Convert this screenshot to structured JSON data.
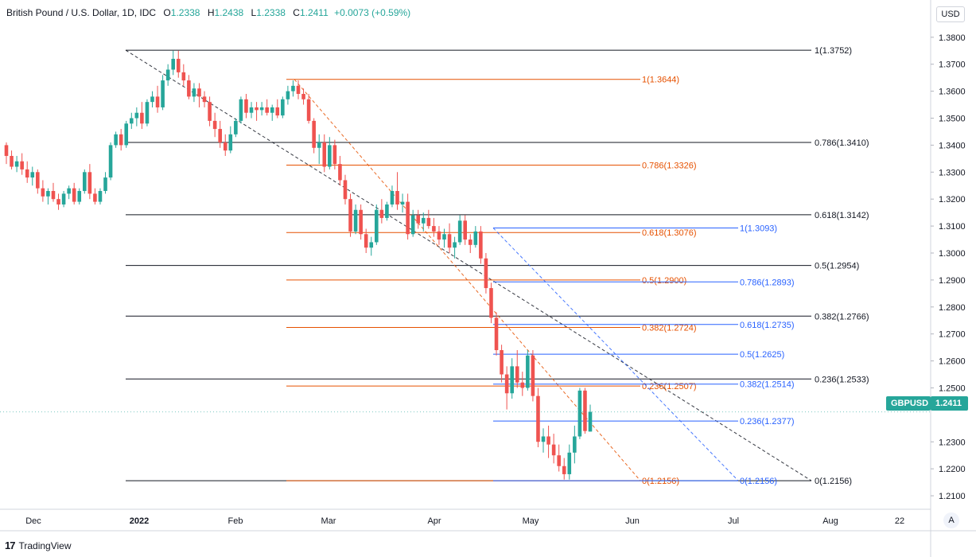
{
  "header": {
    "symbol": "British Pound / U.S. Dollar, 1D, IDC",
    "open_label": "O",
    "open": "1.2338",
    "high_label": "H",
    "high": "1.2438",
    "low_label": "L",
    "low": "1.2338",
    "close_label": "C",
    "close": "1.2411",
    "change": "+0.0073 (+0.59%)"
  },
  "currency_button": "USD",
  "auto_button": "A",
  "last_price": {
    "ticker": "GBPUSD",
    "value": "1.2411"
  },
  "brand": {
    "logo": "17",
    "name": "TradingView"
  },
  "colors": {
    "up": "#26a69a",
    "down": "#ef5350",
    "fib_black": "#131722",
    "fib_orange": "#e65100",
    "fib_blue": "#2962ff",
    "tag_bg": "#26a69a"
  },
  "chart_data": {
    "type": "candlestick",
    "title": "British Pound / U.S. Dollar, 1D, IDC",
    "ylim": [
      1.205,
      1.3885
    ],
    "y_ticks": [
      "1.3800",
      "1.3700",
      "1.3600",
      "1.3500",
      "1.3400",
      "1.3300",
      "1.3200",
      "1.3100",
      "1.3000",
      "1.2900",
      "1.2800",
      "1.2700",
      "1.2600",
      "1.2500",
      "1.2300",
      "1.2200",
      "1.2100"
    ],
    "x_ticks": [
      "Dec",
      "2022",
      "Feb",
      "Mar",
      "Apr",
      "May",
      "Jun",
      "Jul",
      "Aug",
      "22"
    ],
    "grid": false,
    "fib_sets": [
      {
        "name": "black",
        "high": 1.3752,
        "low": 1.2156,
        "levels": [
          {
            "ratio": "1",
            "price": 1.3752,
            "label": "1(1.3752)"
          },
          {
            "ratio": "0.786",
            "price": 1.341,
            "label": "0.786(1.3410)"
          },
          {
            "ratio": "0.618",
            "price": 1.3142,
            "label": "0.618(1.3142)"
          },
          {
            "ratio": "0.5",
            "price": 1.2954,
            "label": "0.5(1.2954)"
          },
          {
            "ratio": "0.382",
            "price": 1.2766,
            "label": "0.382(1.2766)"
          },
          {
            "ratio": "0.236",
            "price": 1.2533,
            "label": "0.236(1.2533)"
          },
          {
            "ratio": "0",
            "price": 1.2156,
            "label": "0(1.2156)"
          }
        ]
      },
      {
        "name": "orange",
        "high": 1.3644,
        "low": 1.2156,
        "levels": [
          {
            "ratio": "1",
            "price": 1.3644,
            "label": "1(1.3644)"
          },
          {
            "ratio": "0.786",
            "price": 1.3326,
            "label": "0.786(1.3326)"
          },
          {
            "ratio": "0.618",
            "price": 1.3076,
            "label": "0.618(1.3076)"
          },
          {
            "ratio": "0.5",
            "price": 1.29,
            "label": "0.5(1.2900)"
          },
          {
            "ratio": "0.382",
            "price": 1.2724,
            "label": "0.382(1.2724)"
          },
          {
            "ratio": "0.236",
            "price": 1.2507,
            "label": "0.236(1.2507)"
          },
          {
            "ratio": "0",
            "price": 1.2156,
            "label": "0(1.2156)"
          }
        ]
      },
      {
        "name": "blue",
        "high": 1.3093,
        "low": 1.2156,
        "levels": [
          {
            "ratio": "1",
            "price": 1.3093,
            "label": "1(1.3093)"
          },
          {
            "ratio": "0.786",
            "price": 1.2893,
            "label": "0.786(1.2893)"
          },
          {
            "ratio": "0.618",
            "price": 1.2735,
            "label": "0.618(1.2735)"
          },
          {
            "ratio": "0.5",
            "price": 1.2625,
            "label": "0.5(1.2625)"
          },
          {
            "ratio": "0.382",
            "price": 1.2514,
            "label": "0.382(1.2514)"
          },
          {
            "ratio": "0.236",
            "price": 1.2377,
            "label": "0.236(1.2377)"
          },
          {
            "ratio": "0",
            "price": 1.2156,
            "label": "0(1.2156)"
          }
        ]
      }
    ],
    "candles": [
      [
        1.34,
        1.341,
        1.333,
        1.336
      ],
      [
        1.336,
        1.338,
        1.331,
        1.332
      ],
      [
        1.332,
        1.336,
        1.33,
        1.334
      ],
      [
        1.334,
        1.337,
        1.329,
        1.331
      ],
      [
        1.331,
        1.334,
        1.326,
        1.328
      ],
      [
        1.328,
        1.332,
        1.325,
        1.33
      ],
      [
        1.33,
        1.331,
        1.322,
        1.324
      ],
      [
        1.324,
        1.327,
        1.319,
        1.321
      ],
      [
        1.321,
        1.324,
        1.318,
        1.323
      ],
      [
        1.323,
        1.326,
        1.319,
        1.32
      ],
      [
        1.32,
        1.322,
        1.316,
        1.318
      ],
      [
        1.318,
        1.323,
        1.317,
        1.322
      ],
      [
        1.322,
        1.325,
        1.32,
        1.324
      ],
      [
        1.324,
        1.326,
        1.318,
        1.319
      ],
      [
        1.319,
        1.324,
        1.318,
        1.323
      ],
      [
        1.323,
        1.331,
        1.322,
        1.33
      ],
      [
        1.33,
        1.333,
        1.32,
        1.322
      ],
      [
        1.322,
        1.324,
        1.318,
        1.319
      ],
      [
        1.319,
        1.324,
        1.318,
        1.323
      ],
      [
        1.323,
        1.33,
        1.322,
        1.328
      ],
      [
        1.328,
        1.341,
        1.327,
        1.34
      ],
      [
        1.34,
        1.345,
        1.339,
        1.344
      ],
      [
        1.344,
        1.346,
        1.338,
        1.34
      ],
      [
        1.34,
        1.349,
        1.339,
        1.348
      ],
      [
        1.348,
        1.352,
        1.346,
        1.35
      ],
      [
        1.35,
        1.354,
        1.347,
        1.352
      ],
      [
        1.352,
        1.356,
        1.346,
        1.348
      ],
      [
        1.348,
        1.357,
        1.347,
        1.356
      ],
      [
        1.356,
        1.36,
        1.354,
        1.358
      ],
      [
        1.358,
        1.362,
        1.352,
        1.354
      ],
      [
        1.354,
        1.366,
        1.353,
        1.364
      ],
      [
        1.364,
        1.37,
        1.362,
        1.368
      ],
      [
        1.368,
        1.375,
        1.366,
        1.372
      ],
      [
        1.372,
        1.375,
        1.365,
        1.367
      ],
      [
        1.367,
        1.37,
        1.362,
        1.364
      ],
      [
        1.364,
        1.366,
        1.357,
        1.358
      ],
      [
        1.358,
        1.363,
        1.356,
        1.361
      ],
      [
        1.361,
        1.363,
        1.354,
        1.358
      ],
      [
        1.358,
        1.36,
        1.354,
        1.356
      ],
      [
        1.356,
        1.358,
        1.347,
        1.349
      ],
      [
        1.349,
        1.352,
        1.343,
        1.346
      ],
      [
        1.346,
        1.349,
        1.339,
        1.341
      ],
      [
        1.341,
        1.344,
        1.336,
        1.338
      ],
      [
        1.338,
        1.347,
        1.337,
        1.344
      ],
      [
        1.344,
        1.35,
        1.343,
        1.349
      ],
      [
        1.349,
        1.358,
        1.348,
        1.357
      ],
      [
        1.357,
        1.359,
        1.35,
        1.352
      ],
      [
        1.352,
        1.356,
        1.35,
        1.354
      ],
      [
        1.354,
        1.356,
        1.349,
        1.353
      ],
      [
        1.353,
        1.356,
        1.351,
        1.354
      ],
      [
        1.354,
        1.357,
        1.351,
        1.352
      ],
      [
        1.352,
        1.355,
        1.349,
        1.354
      ],
      [
        1.354,
        1.357,
        1.35,
        1.351
      ],
      [
        1.351,
        1.358,
        1.35,
        1.357
      ],
      [
        1.357,
        1.362,
        1.355,
        1.36
      ],
      [
        1.36,
        1.364,
        1.358,
        1.362
      ],
      [
        1.362,
        1.364,
        1.357,
        1.359
      ],
      [
        1.359,
        1.361,
        1.355,
        1.357
      ],
      [
        1.357,
        1.359,
        1.348,
        1.349
      ],
      [
        1.349,
        1.35,
        1.337,
        1.339
      ],
      [
        1.339,
        1.344,
        1.333,
        1.341
      ],
      [
        1.341,
        1.344,
        1.33,
        1.332
      ],
      [
        1.332,
        1.343,
        1.331,
        1.34
      ],
      [
        1.34,
        1.342,
        1.331,
        1.333
      ],
      [
        1.333,
        1.336,
        1.325,
        1.327
      ],
      [
        1.327,
        1.329,
        1.318,
        1.32
      ],
      [
        1.32,
        1.322,
        1.306,
        1.308
      ],
      [
        1.308,
        1.318,
        1.307,
        1.316
      ],
      [
        1.316,
        1.318,
        1.305,
        1.307
      ],
      [
        1.307,
        1.309,
        1.3,
        1.302
      ],
      [
        1.302,
        1.306,
        1.299,
        1.304
      ],
      [
        1.304,
        1.318,
        1.303,
        1.316
      ],
      [
        1.316,
        1.32,
        1.311,
        1.313
      ],
      [
        1.313,
        1.319,
        1.312,
        1.318
      ],
      [
        1.318,
        1.325,
        1.317,
        1.323
      ],
      [
        1.323,
        1.33,
        1.316,
        1.318
      ],
      [
        1.318,
        1.322,
        1.315,
        1.319
      ],
      [
        1.319,
        1.322,
        1.305,
        1.307
      ],
      [
        1.307,
        1.316,
        1.306,
        1.314
      ],
      [
        1.314,
        1.316,
        1.309,
        1.311
      ],
      [
        1.311,
        1.315,
        1.308,
        1.313
      ],
      [
        1.313,
        1.316,
        1.309,
        1.31
      ],
      [
        1.31,
        1.313,
        1.306,
        1.308
      ],
      [
        1.308,
        1.31,
        1.303,
        1.305
      ],
      [
        1.305,
        1.309,
        1.302,
        1.307
      ],
      [
        1.307,
        1.311,
        1.3,
        1.302
      ],
      [
        1.302,
        1.306,
        1.298,
        1.304
      ],
      [
        1.304,
        1.314,
        1.303,
        1.312
      ],
      [
        1.312,
        1.314,
        1.303,
        1.305
      ],
      [
        1.305,
        1.307,
        1.3,
        1.303
      ],
      [
        1.303,
        1.31,
        1.302,
        1.308
      ],
      [
        1.308,
        1.31,
        1.296,
        1.298
      ],
      [
        1.298,
        1.3,
        1.285,
        1.287
      ],
      [
        1.287,
        1.289,
        1.274,
        1.276
      ],
      [
        1.276,
        1.278,
        1.262,
        1.264
      ],
      [
        1.264,
        1.266,
        1.252,
        1.255
      ],
      [
        1.255,
        1.258,
        1.242,
        1.248
      ],
      [
        1.248,
        1.261,
        1.246,
        1.258
      ],
      [
        1.258,
        1.264,
        1.25,
        1.252
      ],
      [
        1.252,
        1.256,
        1.247,
        1.25
      ],
      [
        1.25,
        1.264,
        1.249,
        1.262
      ],
      [
        1.262,
        1.264,
        1.245,
        1.247
      ],
      [
        1.247,
        1.25,
        1.228,
        1.23
      ],
      [
        1.23,
        1.235,
        1.226,
        1.232
      ],
      [
        1.232,
        1.236,
        1.224,
        1.229
      ],
      [
        1.229,
        1.233,
        1.222,
        1.225
      ],
      [
        1.225,
        1.229,
        1.219,
        1.221
      ],
      [
        1.221,
        1.224,
        1.216,
        1.218
      ],
      [
        1.218,
        1.229,
        1.216,
        1.226
      ],
      [
        1.226,
        1.236,
        1.222,
        1.232
      ],
      [
        1.232,
        1.25,
        1.231,
        1.249
      ],
      [
        1.249,
        1.25,
        1.233,
        1.234
      ],
      [
        1.2338,
        1.2438,
        1.2338,
        1.2411
      ]
    ]
  }
}
